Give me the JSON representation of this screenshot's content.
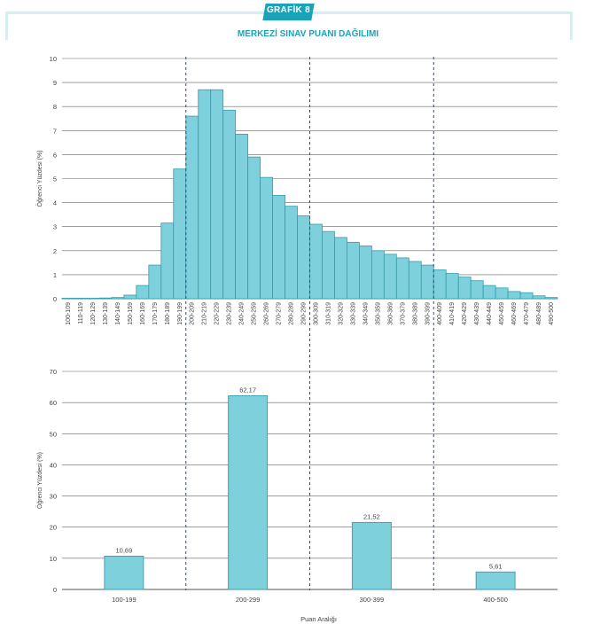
{
  "header": {
    "badge": "GRAFİK 8",
    "title": "MERKEZİ SINAV PUANI DAĞILIMI"
  },
  "colors": {
    "bar_fill": "#7ed0dc",
    "bar_stroke": "#2f9fb0",
    "accent": "#1aa3b8",
    "divider": "#2b4a8a"
  },
  "chart_data": [
    {
      "type": "bar",
      "title": "",
      "xlabel": "",
      "ylabel": "Öğrenci Yüzdesi (%)",
      "ylim": [
        0,
        10
      ],
      "yticks": [
        0,
        1,
        2,
        3,
        4,
        5,
        6,
        7,
        8,
        9,
        10
      ],
      "grid": true,
      "categories": [
        "100-109",
        "110-119",
        "120-129",
        "130-139",
        "140-149",
        "150-159",
        "160-169",
        "170-179",
        "180-189",
        "190-199",
        "200-209",
        "210-219",
        "220-229",
        "230-239",
        "240-249",
        "250-259",
        "260-269",
        "270-279",
        "280-289",
        "290-299",
        "300-309",
        "310-319",
        "320-329",
        "330-339",
        "340-349",
        "350-359",
        "360-369",
        "370-379",
        "380-389",
        "390-399",
        "400-409",
        "410-419",
        "420-429",
        "430-439",
        "440-449",
        "450-459",
        "460-469",
        "470-479",
        "480-489",
        "490-500"
      ],
      "values": [
        0.02,
        0.02,
        0.02,
        0.03,
        0.05,
        0.15,
        0.55,
        1.4,
        3.15,
        5.4,
        7.6,
        8.7,
        8.7,
        7.85,
        6.85,
        5.9,
        5.05,
        4.3,
        3.85,
        3.45,
        3.1,
        2.8,
        2.55,
        2.35,
        2.2,
        2.0,
        1.85,
        1.7,
        1.55,
        1.4,
        1.2,
        1.05,
        0.9,
        0.75,
        0.55,
        0.45,
        0.3,
        0.25,
        0.12,
        0.05
      ]
    },
    {
      "type": "bar",
      "title": "",
      "xlabel": "Puan Aralığı",
      "ylabel": "Öğrenci Yüzdesi (%)",
      "ylim": [
        0,
        70
      ],
      "yticks": [
        0,
        10,
        20,
        30,
        40,
        50,
        60,
        70
      ],
      "grid": true,
      "categories": [
        "100-199",
        "200-299",
        "300-399",
        "400-500"
      ],
      "values": [
        10.69,
        62.17,
        21.52,
        5.61
      ],
      "data_labels": [
        "10,69",
        "62,17",
        "21,52",
        "5,61"
      ]
    }
  ]
}
